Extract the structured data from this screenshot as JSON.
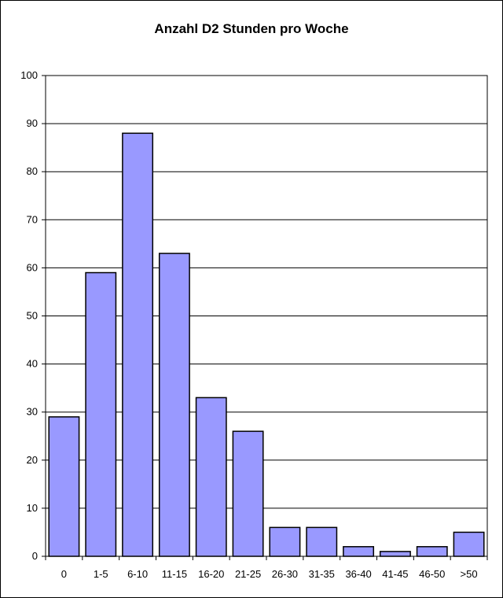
{
  "chart_data": {
    "type": "bar",
    "title": "Anzahl D2 Stunden pro Woche",
    "categories": [
      "0",
      "1-5",
      "6-10",
      "11-15",
      "16-20",
      "21-25",
      "26-30",
      "31-35",
      "36-40",
      "41-45",
      "46-50",
      ">50"
    ],
    "values": [
      29,
      59,
      88,
      63,
      33,
      26,
      6,
      6,
      2,
      1,
      2,
      5
    ],
    "xlabel": "",
    "ylabel": "",
    "ylim": [
      0,
      100
    ],
    "yticks": [
      0,
      10,
      20,
      30,
      40,
      50,
      60,
      70,
      80,
      90,
      100
    ],
    "grid": true,
    "bar_color": "#9999ff",
    "bar_edge_color": "#000000"
  }
}
